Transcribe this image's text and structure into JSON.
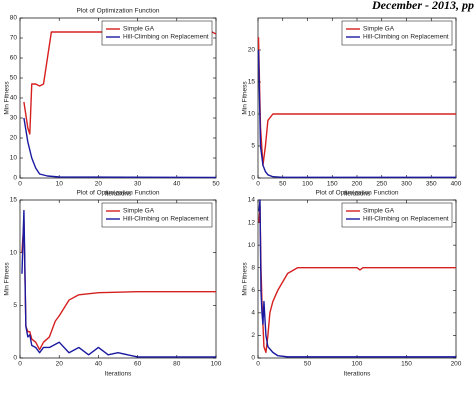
{
  "header": "December - 2013, pp",
  "chart_data": [
    {
      "type": "line",
      "title": "Plot of Optimization Function",
      "x_label": "Iterations",
      "y_label": "Min Fitness",
      "xlim": [
        0,
        50
      ],
      "xticks": [
        0,
        10,
        20,
        30,
        40,
        50
      ],
      "ylim": [
        0,
        80
      ],
      "yticks": [
        0,
        10,
        20,
        30,
        40,
        50,
        60,
        70,
        80
      ],
      "legend": "top-right",
      "series": [
        {
          "name": "Simple GA",
          "color": "#d62020",
          "x": [
            1,
            2,
            2.5,
            3,
            4,
            5,
            6,
            7,
            8,
            10,
            15,
            20,
            30,
            40,
            49,
            50
          ],
          "values": [
            38,
            25,
            22,
            47,
            47,
            46,
            47,
            60,
            73,
            73,
            73,
            73,
            73,
            73,
            73,
            72
          ]
        },
        {
          "name": "Hill-Climbing on Replacement",
          "color": "#1a1aa0",
          "x": [
            1,
            2,
            3,
            4,
            5,
            7,
            10,
            50
          ],
          "values": [
            30,
            18,
            10,
            5,
            2,
            1,
            0.5,
            0.3
          ]
        }
      ]
    },
    {
      "type": "line",
      "x_label": "Iterations",
      "y_label": "Min Fitness",
      "xlim": [
        0,
        400
      ],
      "xticks": [
        0,
        50,
        100,
        150,
        200,
        250,
        300,
        350,
        400
      ],
      "ylim": [
        0,
        25
      ],
      "yticks": [
        0,
        5,
        10,
        15,
        20
      ],
      "legend": "top-right",
      "series": [
        {
          "name": "Simple GA",
          "color": "#d62020",
          "x": [
            1,
            5,
            10,
            15,
            20,
            30,
            50,
            100,
            200,
            300,
            400
          ],
          "values": [
            22,
            8,
            2,
            5,
            9,
            10,
            10,
            10,
            10,
            10,
            10
          ]
        },
        {
          "name": "Hill-Climbing on Replacement",
          "color": "#1a1aa0",
          "x": [
            1,
            5,
            10,
            15,
            20,
            30,
            50,
            100,
            200,
            300,
            400
          ],
          "values": [
            20,
            5,
            2,
            1,
            0.5,
            0.2,
            0.1,
            0.1,
            0.1,
            0.1,
            0.1
          ]
        }
      ]
    },
    {
      "type": "line",
      "title": "Plot of Optimization Function",
      "x_label": "Iterations",
      "y_label": "Min Fitness",
      "xlim": [
        0,
        100
      ],
      "xticks": [
        0,
        20,
        40,
        60,
        80,
        100
      ],
      "ylim": [
        0,
        15
      ],
      "yticks": [
        0,
        5,
        10,
        15
      ],
      "legend": "top-right",
      "series": [
        {
          "name": "Simple GA",
          "color": "#d62020",
          "x": [
            1,
            2,
            3,
            4,
            5,
            6,
            8,
            10,
            12,
            15,
            18,
            20,
            25,
            30,
            40,
            60,
            80,
            100
          ],
          "values": [
            10,
            13,
            3,
            2.5,
            2.5,
            1.8,
            1.5,
            0.8,
            1.5,
            2,
            3.5,
            4,
            5.5,
            6,
            6.2,
            6.3,
            6.3,
            6.3
          ]
        },
        {
          "name": "Hill-Climbing on Replacement",
          "color": "#1a1aa0",
          "x": [
            1,
            2,
            3,
            4,
            5,
            6,
            8,
            10,
            12,
            15,
            20,
            25,
            30,
            35,
            40,
            45,
            50,
            60,
            80,
            100
          ],
          "values": [
            8,
            14,
            3,
            2,
            2.2,
            1.2,
            1,
            0.5,
            1,
            1,
            1.5,
            0.5,
            1,
            0.3,
            1,
            0.3,
            0.5,
            0.1,
            0.1,
            0.1
          ]
        }
      ]
    },
    {
      "type": "line",
      "title": "Plot of Optimization Function",
      "x_label": "Iterations",
      "y_label": "Min Fitness",
      "xlim": [
        0,
        200
      ],
      "xticks": [
        0,
        50,
        100,
        150,
        200
      ],
      "ylim": [
        0,
        14
      ],
      "yticks": [
        0,
        2,
        4,
        6,
        8,
        10,
        12,
        14
      ],
      "legend": "top-right",
      "series": [
        {
          "name": "Simple GA",
          "color": "#d62020",
          "x": [
            1,
            2,
            3,
            4,
            5,
            6,
            8,
            10,
            12,
            15,
            20,
            30,
            40,
            60,
            100,
            103,
            106,
            150,
            200
          ],
          "values": [
            12,
            13.5,
            8,
            5,
            3,
            1,
            0.5,
            2,
            4,
            5,
            6,
            7.5,
            8,
            8,
            8,
            7.8,
            8,
            8,
            8
          ]
        },
        {
          "name": "Hill-Climbing on Replacement",
          "color": "#1a1aa0",
          "x": [
            1,
            2,
            3,
            4,
            5,
            6,
            8,
            10,
            15,
            20,
            30,
            40,
            200
          ],
          "values": [
            13,
            14,
            6,
            4,
            3,
            5,
            2,
            1,
            0.5,
            0.2,
            0.1,
            0.1,
            0.1
          ]
        }
      ]
    }
  ]
}
